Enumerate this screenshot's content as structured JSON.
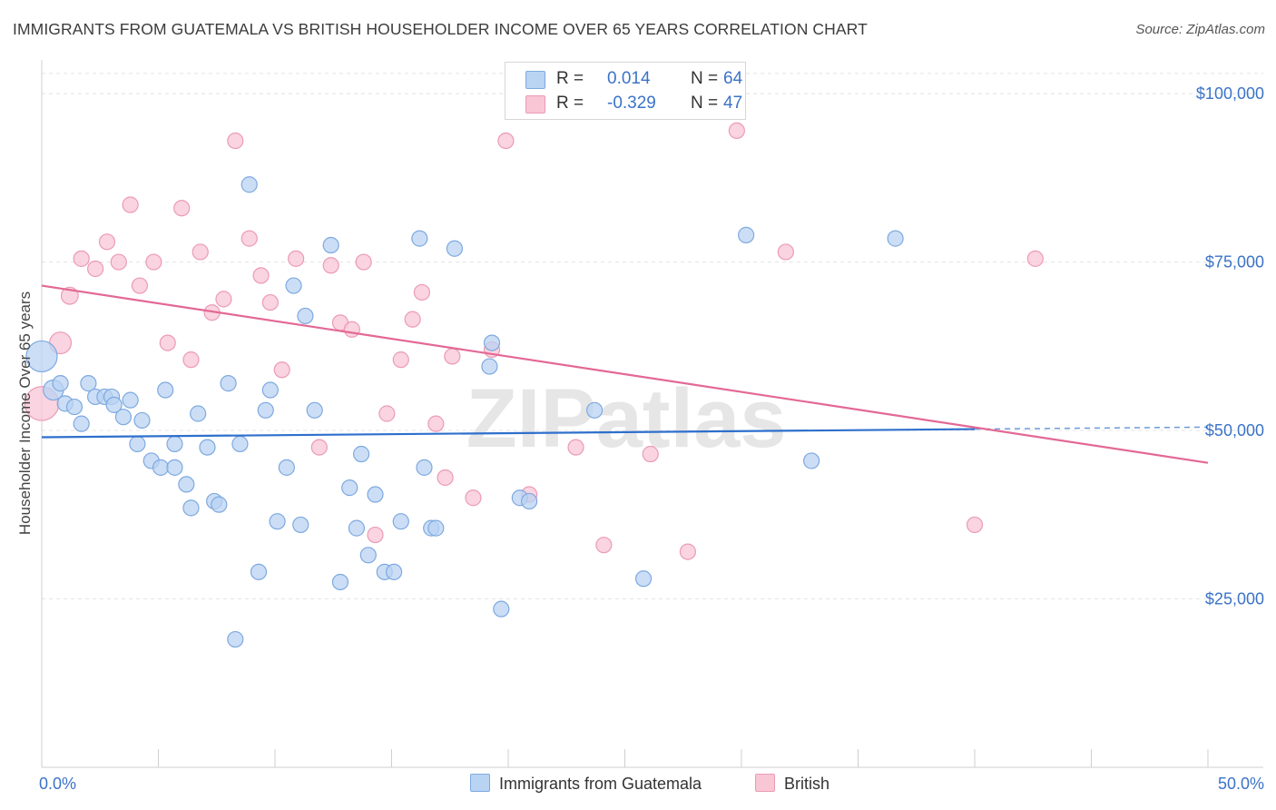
{
  "title": "IMMIGRANTS FROM GUATEMALA VS BRITISH HOUSEHOLDER INCOME OVER 65 YEARS CORRELATION CHART",
  "source": "Source: ZipAtlas.com",
  "watermark": "ZIPatlas",
  "legend_top": {
    "rows": [
      {
        "r_label": "R =",
        "r_value": "0.014",
        "n_label": "N =",
        "n_value": "64"
      },
      {
        "r_label": "R =",
        "r_value": "-0.329",
        "n_label": "N =",
        "n_value": "47"
      }
    ]
  },
  "legend_bottom": [
    "Immigrants from Guatemala",
    "British"
  ],
  "colors": {
    "blue_fill": "#b9d3f3",
    "blue_stroke": "#7ea9df",
    "blue_line": "#2e6fcc",
    "pink_fill": "#f8c6d5",
    "pink_stroke": "#eb9bb5",
    "pink_line": "#e36895",
    "axis_text": "#3b73c8",
    "grid": "#e4e4e4"
  },
  "chart_data": {
    "type": "scatter",
    "title": "IMMIGRANTS FROM GUATEMALA VS BRITISH HOUSEHOLDER INCOME OVER 65 YEARS CORRELATION CHART",
    "xlabel": "",
    "ylabel": "Householder Income Over 65 years",
    "xlim": [
      0,
      50
    ],
    "ylim": [
      0,
      105000
    ],
    "x_tick_labels": [
      "0.0%",
      "50.0%"
    ],
    "y_ticks": [
      25000,
      50000,
      75000,
      100000
    ],
    "y_tick_labels": [
      "$25,000",
      "$50,000",
      "$75,000",
      "$100,000"
    ],
    "grid": true,
    "legend_position": "top-center",
    "series": [
      {
        "name": "Immigrants from Guatemala",
        "color": "#b9d3f3",
        "trend": {
          "x": [
            0,
            40
          ],
          "y": [
            49000,
            50200
          ],
          "dashed_extension_to_x": 50
        },
        "points": [
          [
            0.0,
            61000,
            2
          ],
          [
            0.5,
            56000,
            1.3
          ],
          [
            0.8,
            57000,
            1
          ],
          [
            1.0,
            54000,
            1
          ],
          [
            1.4,
            53500,
            1
          ],
          [
            1.7,
            51000,
            1
          ],
          [
            2.0,
            57000,
            1
          ],
          [
            2.3,
            55000,
            1
          ],
          [
            2.7,
            55000,
            1
          ],
          [
            3.0,
            55000,
            1
          ],
          [
            3.1,
            53800,
            1
          ],
          [
            3.5,
            52000,
            1
          ],
          [
            3.8,
            54500,
            1
          ],
          [
            4.1,
            48000,
            1
          ],
          [
            4.3,
            51500,
            1
          ],
          [
            4.7,
            45500,
            1
          ],
          [
            5.1,
            44500,
            1
          ],
          [
            5.3,
            56000,
            1
          ],
          [
            5.7,
            44500,
            1
          ],
          [
            5.7,
            48000,
            1
          ],
          [
            6.2,
            42000,
            1
          ],
          [
            6.4,
            38500,
            1
          ],
          [
            6.7,
            52500,
            1
          ],
          [
            7.1,
            47500,
            1
          ],
          [
            7.4,
            39500,
            1
          ],
          [
            7.6,
            39000,
            1
          ],
          [
            8.0,
            57000,
            1
          ],
          [
            8.3,
            19000,
            1
          ],
          [
            8.5,
            48000,
            1
          ],
          [
            8.9,
            86500,
            1
          ],
          [
            9.3,
            29000,
            1
          ],
          [
            9.6,
            53000,
            1
          ],
          [
            9.8,
            56000,
            1
          ],
          [
            10.1,
            36500,
            1
          ],
          [
            10.5,
            44500,
            1
          ],
          [
            10.8,
            71500,
            1
          ],
          [
            11.1,
            36000,
            1
          ],
          [
            11.3,
            67000,
            1
          ],
          [
            11.7,
            53000,
            1
          ],
          [
            12.4,
            77500,
            1
          ],
          [
            12.8,
            27500,
            1
          ],
          [
            13.2,
            41500,
            1
          ],
          [
            13.5,
            35500,
            1
          ],
          [
            13.7,
            46500,
            1
          ],
          [
            14.0,
            31500,
            1
          ],
          [
            14.3,
            40500,
            1
          ],
          [
            14.7,
            29000,
            1
          ],
          [
            15.1,
            29000,
            1
          ],
          [
            15.4,
            36500,
            1
          ],
          [
            16.2,
            78500,
            1
          ],
          [
            16.4,
            44500,
            1
          ],
          [
            16.7,
            35500,
            1
          ],
          [
            16.9,
            35500,
            1
          ],
          [
            17.7,
            77000,
            1
          ],
          [
            19.2,
            59500,
            1
          ],
          [
            19.3,
            63000,
            1
          ],
          [
            19.7,
            23500,
            1
          ],
          [
            20.5,
            40000,
            1
          ],
          [
            20.9,
            39500,
            1
          ],
          [
            23.7,
            53000,
            1
          ],
          [
            25.8,
            28000,
            1
          ],
          [
            30.2,
            79000,
            1
          ],
          [
            33.0,
            45500,
            1
          ],
          [
            36.6,
            78500,
            1
          ]
        ]
      },
      {
        "name": "British",
        "color": "#f8c6d5",
        "trend": {
          "x": [
            0,
            50
          ],
          "y": [
            71500,
            45200
          ]
        },
        "points": [
          [
            0.0,
            54000,
            2.2
          ],
          [
            0.8,
            63000,
            1.4
          ],
          [
            1.2,
            70000,
            1.1
          ],
          [
            1.7,
            75500,
            1
          ],
          [
            2.3,
            74000,
            1
          ],
          [
            2.8,
            78000,
            1
          ],
          [
            3.3,
            75000,
            1
          ],
          [
            3.8,
            83500,
            1
          ],
          [
            4.2,
            71500,
            1
          ],
          [
            4.8,
            75000,
            1
          ],
          [
            5.4,
            63000,
            1
          ],
          [
            6.0,
            83000,
            1
          ],
          [
            6.4,
            60500,
            1
          ],
          [
            6.8,
            76500,
            1
          ],
          [
            7.3,
            67500,
            1
          ],
          [
            7.8,
            69500,
            1
          ],
          [
            8.3,
            93000,
            1
          ],
          [
            8.9,
            78500,
            1
          ],
          [
            9.4,
            73000,
            1
          ],
          [
            9.8,
            69000,
            1
          ],
          [
            10.3,
            59000,
            1
          ],
          [
            10.9,
            75500,
            1
          ],
          [
            11.9,
            47500,
            1
          ],
          [
            12.4,
            74500,
            1
          ],
          [
            12.8,
            66000,
            1
          ],
          [
            13.3,
            65000,
            1
          ],
          [
            13.8,
            75000,
            1
          ],
          [
            14.3,
            34500,
            1
          ],
          [
            14.8,
            52500,
            1
          ],
          [
            15.4,
            60500,
            1
          ],
          [
            15.9,
            66500,
            1
          ],
          [
            16.3,
            70500,
            1
          ],
          [
            16.9,
            51000,
            1
          ],
          [
            17.3,
            43000,
            1
          ],
          [
            17.6,
            61000,
            1
          ],
          [
            18.5,
            40000,
            1
          ],
          [
            19.3,
            62000,
            1
          ],
          [
            19.9,
            93000,
            1
          ],
          [
            20.9,
            40500,
            1
          ],
          [
            22.9,
            47500,
            1
          ],
          [
            24.1,
            33000,
            1
          ],
          [
            26.1,
            46500,
            1
          ],
          [
            27.7,
            32000,
            1
          ],
          [
            29.8,
            94500,
            1
          ],
          [
            31.9,
            76500,
            1
          ],
          [
            40.0,
            36000,
            1
          ],
          [
            42.6,
            75500,
            1
          ]
        ]
      }
    ]
  }
}
